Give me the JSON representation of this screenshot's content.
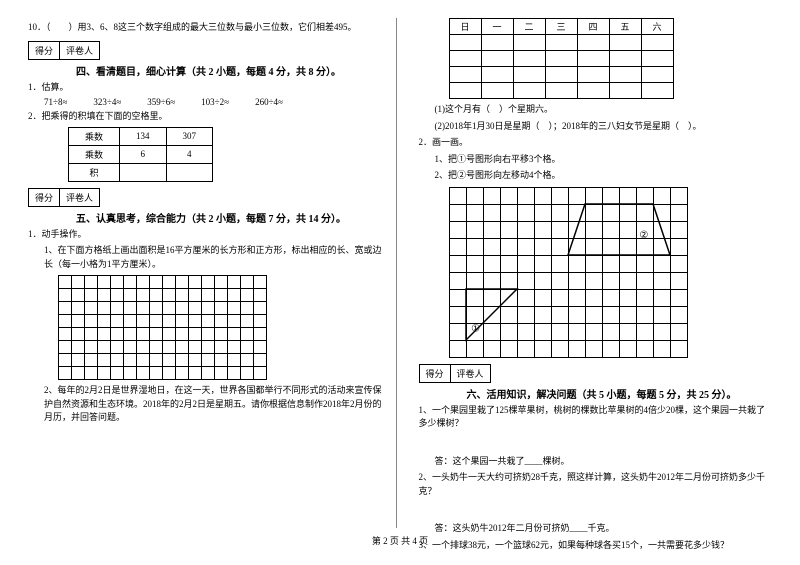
{
  "left": {
    "q10": "10．（　　）用3、6、8这三个数字组成的最大三位数与最小三位数，它们相差495。",
    "scoreLabel1": "得分",
    "scoreLabel2": "评卷人",
    "section4": "四、看清题目，细心计算（共 2 小题，每题 4 分，共 8 分）。",
    "est_title": "1．估算。",
    "est": [
      "71÷8≈",
      "323÷4≈",
      "359÷6≈",
      "103÷2≈",
      "260÷4≈"
    ],
    "q2": "2．把乘得的积填在下面的空格里。",
    "tbl": {
      "rows": [
        [
          "乘数",
          "134",
          "307"
        ],
        [
          "乘数",
          "6",
          "4"
        ],
        [
          "积",
          "",
          ""
        ]
      ]
    },
    "section5": "五、认真思考，综合能力（共 2 小题，每题 7 分，共 14 分）。",
    "q5_1": "1．动手操作。",
    "q5_1_1": "1、在下面方格纸上画出面积是16平方厘米的长方形和正方形，标出相应的长、宽或边长（每一小格为1平方厘米）。",
    "q5_2": "2、每年的2月2日是世界湿地日，在这一天，世界各国都举行不同形式的活动来宣传保护自然资源和生态环境。2018年的2月2日是星期五。请你根据信息制作2018年2月份的月历，并回答问题。",
    "grid": {
      "rows": 8,
      "cols": 16
    }
  },
  "right": {
    "cal_header": [
      "日",
      "一",
      "二",
      "三",
      "四",
      "五",
      "六"
    ],
    "cal_rows": 4,
    "r1": "(1)这个月有（　）个星期六。",
    "r2": "(2)2018年1月30日是星期（　）；2018年的三八妇女节是星期（　）。",
    "q2_title": "2．画一画。",
    "q2_1": "1、把①号图形向右平移3个格。",
    "q2_2": "2、把②号图形向左移动4个格。",
    "shape_grid": {
      "rows": 10,
      "cols": 14,
      "cell": 17
    },
    "shape1": {
      "label": "①",
      "color": "#000"
    },
    "shape2": {
      "label": "②",
      "color": "#000"
    },
    "scoreLabel1": "得分",
    "scoreLabel2": "评卷人",
    "section6": "六、活用知识，解决问题（共 5 小题，每题 5 分，共 25 分）。",
    "q6_1": "1、一个果园里栽了125棵苹果树，桃树的棵数比苹果树的4倍少20棵，这个果园一共栽了多少棵树？",
    "a6_1": "答：这个果园一共栽了____棵树。",
    "q6_2": "2、一头奶牛一天大约可挤奶28千克，照这样计算，这头奶牛2012年二月份可挤奶多少千克？",
    "a6_2": "答：这头奶牛2012年二月份可挤奶____千克。",
    "q6_3": "3、一个排球38元，一个篮球62元，如果每种球各买15个，一共需要花多少钱？"
  },
  "footer": "第 2 页 共 4 页"
}
